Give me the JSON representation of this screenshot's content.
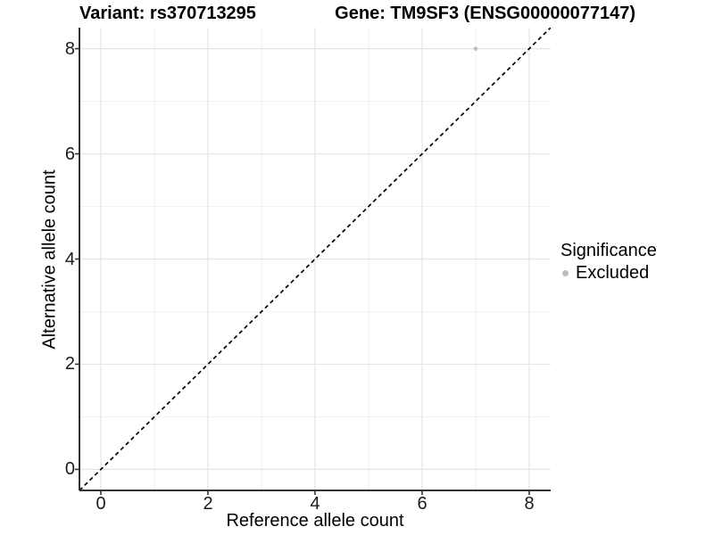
{
  "titles": {
    "variant": "Variant: rs370713295",
    "gene": "Gene: TM9SF3 (ENSG00000077147)"
  },
  "legend": {
    "title": "Significance",
    "items": [
      {
        "label": "Excluded",
        "color": "#bdbdbd"
      }
    ]
  },
  "colors": {
    "grid_major": "#e4e4e4",
    "grid_minor": "#f0f0f0",
    "axis": "#333333",
    "tick_text": "#1a1a1a",
    "reference_line": "#000000",
    "point": "#bdbdbd"
  },
  "chart_data": {
    "type": "scatter",
    "title": "Variant: rs370713295    Gene: TM9SF3 (ENSG00000077147)",
    "xlabel": "Reference allele count",
    "ylabel": "Alternative allele count",
    "xlim": [
      -0.4,
      8.4
    ],
    "ylim": [
      -0.4,
      8.4
    ],
    "xticks": [
      0,
      2,
      4,
      6,
      8
    ],
    "yticks": [
      0,
      2,
      4,
      6,
      8
    ],
    "grid": "major+minor",
    "legend_position": "right",
    "legend_title": "Significance",
    "series": [
      {
        "name": "Excluded",
        "color": "#bdbdbd",
        "points": [
          {
            "x": 7,
            "y": 8
          }
        ]
      }
    ],
    "reference_line": {
      "slope": 1,
      "intercept": 0,
      "style": "dashed",
      "color": "#000000"
    }
  }
}
